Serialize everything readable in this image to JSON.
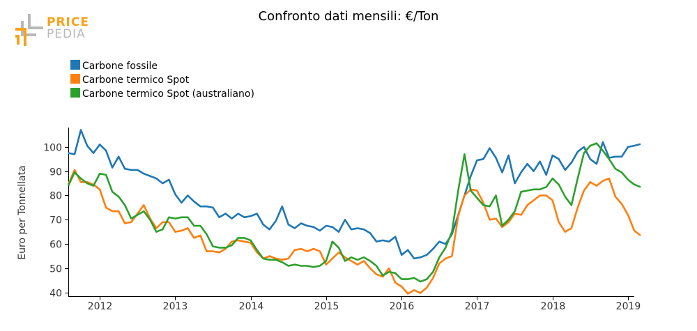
{
  "logo": {
    "line1": "PRICE",
    "line2": "PEDIA",
    "color": "#f7a21b",
    "color_light": "#b8b8b8"
  },
  "chart_data": {
    "type": "line",
    "title": "Confronto dati mensili: €/Ton",
    "ylabel": "Euro per Tonnellata",
    "xlabel": "",
    "ylim": [
      38.5,
      108
    ],
    "xlim": [
      "2011-08",
      "2019-02"
    ],
    "yticks": [
      40,
      50,
      60,
      70,
      80,
      90,
      100
    ],
    "xticks": [
      "2012",
      "2013",
      "2014",
      "2015",
      "2016",
      "2017",
      "2018",
      "2019"
    ],
    "legend_position": "top-left",
    "grid": false,
    "x_start": "2011-08",
    "series": [
      {
        "name": "Carbone fossile",
        "color": "#1f77b4",
        "values": [
          97.5,
          97,
          107,
          100.5,
          97.5,
          101,
          98.5,
          91.5,
          96,
          91,
          90.5,
          90.5,
          89,
          88,
          87,
          85,
          86.5,
          80.5,
          77,
          80,
          77.5,
          75.5,
          75.5,
          75,
          71,
          72.5,
          70.5,
          72.5,
          71,
          71.5,
          72.5,
          68,
          66,
          69.5,
          75.5,
          68,
          66.5,
          68.5,
          67.5,
          67,
          65.5,
          67.5,
          67,
          65,
          70,
          66,
          66.5,
          66,
          64.5,
          61,
          61.5,
          61,
          63,
          55.5,
          57.5,
          54,
          54.5,
          55.5,
          58,
          61,
          60,
          64,
          72,
          80,
          88,
          94.5,
          95,
          99.5,
          95.5,
          89.5,
          96.5,
          85,
          89.5,
          93,
          90,
          94,
          88.5,
          96.5,
          95,
          90.5,
          93.5,
          98,
          100,
          95,
          93,
          102,
          95.5,
          96,
          96,
          100,
          100.5,
          101.2
        ]
      },
      {
        "name": "Carbone termico Spot",
        "color": "#ff7f0e",
        "values": [
          84.5,
          90.5,
          85.5,
          85.5,
          84.5,
          82.5,
          75,
          73.5,
          73.5,
          68.5,
          69,
          72.5,
          76,
          70.5,
          66.5,
          69,
          69,
          65,
          65.5,
          66.5,
          62.5,
          63.5,
          57,
          57,
          56.5,
          58,
          61,
          61.5,
          61,
          60.5,
          56.5,
          54,
          55,
          54,
          53.5,
          54,
          57.5,
          58,
          57,
          58,
          57,
          51.5,
          54,
          56.5,
          54.5,
          53,
          51.5,
          53,
          50,
          47.5,
          46.5,
          50,
          44,
          42.5,
          39.5,
          41,
          39.8,
          42,
          46,
          52,
          54,
          55,
          71.5,
          80,
          82.5,
          82,
          77,
          70,
          70.5,
          67,
          69,
          72.5,
          72,
          76,
          78,
          80,
          80,
          78,
          69,
          65,
          66.5,
          75,
          82,
          85.5,
          84,
          86,
          87,
          79.5,
          76.5,
          72,
          65.5,
          63.5
        ]
      },
      {
        "name": "Carbone termico Spot (australiano)",
        "color": "#2ca02c",
        "values": [
          84,
          89.5,
          87,
          85,
          84,
          89,
          88.5,
          81.5,
          79.5,
          76,
          70.5,
          72,
          73.5,
          70,
          65,
          66,
          71,
          70.5,
          71,
          71,
          67.5,
          67.5,
          64,
          59,
          58.5,
          58.5,
          59.5,
          62.5,
          62.5,
          61.5,
          57.5,
          54,
          53.5,
          53.5,
          52.5,
          51,
          51.5,
          51,
          51,
          50.5,
          51,
          53,
          61,
          58.5,
          53,
          54.5,
          53.5,
          54.5,
          53,
          51,
          47,
          48.5,
          48,
          45.5,
          45.5,
          46,
          44.5,
          45.5,
          48.5,
          54.5,
          58.5,
          65,
          82,
          97,
          82,
          79,
          76,
          75.5,
          80,
          67.5,
          70,
          73.5,
          81.5,
          82,
          82.5,
          82.5,
          83.5,
          87,
          84.5,
          79.5,
          76,
          87,
          97.5,
          100.5,
          101.5,
          98.5,
          95,
          91,
          89.5,
          86.5,
          84.5,
          83.5
        ]
      }
    ]
  }
}
